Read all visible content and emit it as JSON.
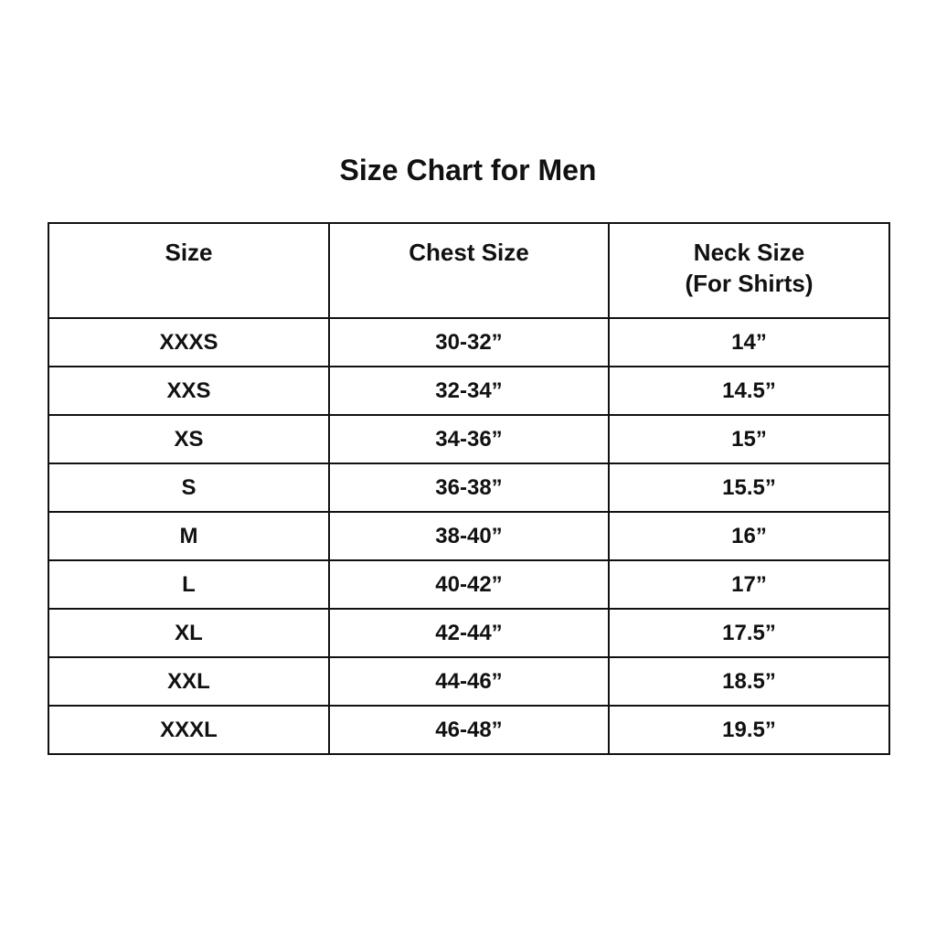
{
  "title": "Size Chart for Men",
  "table": {
    "headers": [
      "Size",
      "Chest Size",
      "Neck Size"
    ],
    "header_sub": "(For Shirts)",
    "rows": [
      [
        "XXXS",
        "30-32”",
        "14”"
      ],
      [
        "XXS",
        "32-34”",
        "14.5”"
      ],
      [
        "XS",
        "34-36”",
        "15”"
      ],
      [
        "S",
        "36-38”",
        "15.5”"
      ],
      [
        "M",
        "38-40”",
        "16”"
      ],
      [
        "L",
        "40-42”",
        "17”"
      ],
      [
        "XL",
        "42-44”",
        "17.5”"
      ],
      [
        "XXL",
        "44-46”",
        "18.5”"
      ],
      [
        "XXXL",
        "46-48”",
        "19.5”"
      ]
    ]
  }
}
